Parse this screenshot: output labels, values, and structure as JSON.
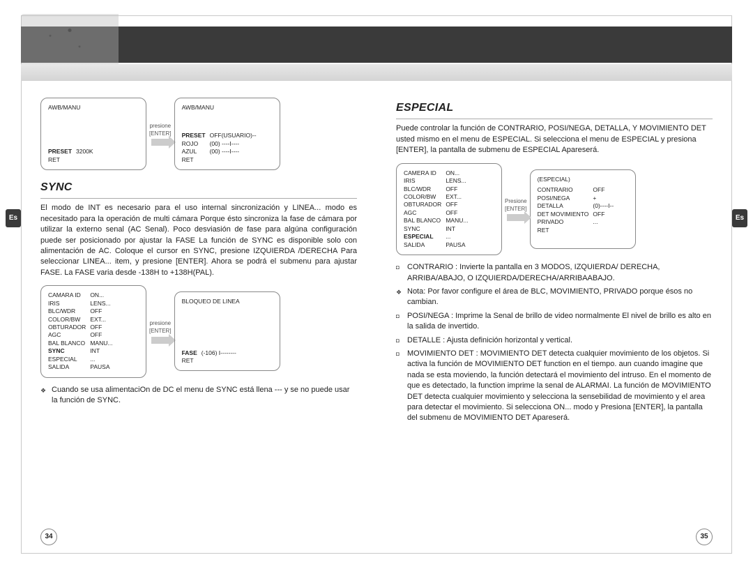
{
  "lang_tab": "Es",
  "left": {
    "awb_title": "AWB/MANU",
    "box1_rows": [
      [
        "PRESET*",
        "3200K"
      ],
      [
        "RET",
        ""
      ]
    ],
    "arrow1_label": [
      "presione",
      "[ENTER]"
    ],
    "box2_rows": [
      [
        "PRESET*",
        "OFF(USUARIO)--"
      ],
      [
        "ROJO",
        "(00) ----I----"
      ],
      [
        "AZUL",
        "(00) ----I----"
      ],
      [
        "RET",
        ""
      ]
    ],
    "sync_heading": "SYNC",
    "sync_body": "El modo de INT es necesario para el uso internal sincronización y LINEA... modo es necesitado para la operación de multi cámara Porque ésto sincroniza la fase de cámara por utilizar la externo senal (AC Senal). Poco desviasión de fase para algúna configuración puede ser posicionado por ajustar la FASE La función de SYNC es disponible solo con alimentación de AC. Coloque el cursor en SYNC, presione IZQUIERDA /DERECHA Para seleccionar LINEA... item, y presione [ENTER]. Ahora se podrá el submenu para ajustar FASE. La FASE varia desde -138H to +138H(PAL).",
    "settings_box_rows": [
      [
        "CAMARA ID",
        "ON..."
      ],
      [
        "IRIS",
        "LENS..."
      ],
      [
        "BLC/WDR",
        "OFF"
      ],
      [
        "COLOR/BW",
        "EXT..."
      ],
      [
        "OBTURADOR",
        "OFF"
      ],
      [
        "AGC",
        "OFF"
      ],
      [
        "BAL BLANCO",
        "MANU..."
      ],
      [
        "SYNC*",
        "INT"
      ],
      [
        "ESPECIAL",
        "..."
      ],
      [
        "SALIDA",
        "PAUSA"
      ]
    ],
    "arrow2_label": [
      "presione",
      "[ENTER]"
    ],
    "linelock_title": "BLOQUEO DE LINEA",
    "linelock_rows": [
      [
        "FASE*",
        "(-106) I--------"
      ],
      [
        "RET",
        ""
      ]
    ],
    "note": "Cuando se usa alimentaciOn de DC el menu de SYNC está llena --- y se no puede usar la función de SYNC.",
    "page_num": "34"
  },
  "right": {
    "especial_heading": "ESPECIAL",
    "especial_body": "Puede controlar la función de CONTRARIO, POSI/NEGA, DETALLA, Y MOVIMIENTO DET usted mismo en el menu de ESPECIAL. Si selecciona el menu de ESPECIAL y presiona [ENTER], la pantalla de submenu de ESPECIAL Apareserá.",
    "settings_box_rows": [
      [
        "CAMERA ID",
        "ON..."
      ],
      [
        "IRIS",
        "LENS..."
      ],
      [
        "BLC/WDR",
        "OFF"
      ],
      [
        "COLOR/BW",
        "EXT..."
      ],
      [
        "OBTURADOR",
        "OFF"
      ],
      [
        "AGC",
        "OFF"
      ],
      [
        "BAL BLANCO",
        "MANU..."
      ],
      [
        "SYNC",
        "INT"
      ],
      [
        "ESPECIAL*",
        "..."
      ],
      [
        "SALIDA",
        "PAUSA"
      ]
    ],
    "arrow_label": [
      "Presione",
      "[ENTER]"
    ],
    "especial_box_title": "(ESPECIAL)",
    "especial_box_rows": [
      [
        "CONTRARIO",
        "OFF"
      ],
      [
        "POSI/NEGA",
        "+"
      ],
      [
        "DETALLA",
        "(0)----I--"
      ],
      [
        "DET MOVIMIENTO",
        "OFF"
      ],
      [
        "PRIVADO",
        "..."
      ],
      [
        "",
        ""
      ],
      [
        "RET",
        ""
      ]
    ],
    "bullets": [
      {
        "t": "sq",
        "text": "CONTRARIO : Invierte la pantalla en 3 MODOS, IZQUIERDA/ DERECHA, ARRIBA/ABAJO, O IZQUIERDA/DERECHA/ARRIBAABAJO."
      },
      {
        "t": "d",
        "text": "Nota: Por favor configure el área de BLC, MOVIMIENTO, PRIVADO porque ésos no cambian."
      },
      {
        "t": "sq",
        "text": "POSI/NEGA : Imprime la Senal de brillo de video normalmente El nivel de brillo es alto en la salida de invertido."
      },
      {
        "t": "sq",
        "text": "DETALLE : Ajusta definición horizontal y vertical."
      },
      {
        "t": "sq",
        "text": "MOVIMIENTO DET : MOVIMIENTO DET detecta cualquier movimiento de los objetos. Si activa la función de MOVIMIENTO DET function en el tiempo. aun cuando imagine que nada se esta moviendo, la función detectará el movimiento del intruso. En el momento de que es detectado, la function imprime la senal de ALARMAI. La función de MOVIMIENTO DET detecta cualquier movimiento y selecciona la sensebilidad de movimiento y el area para detectar el movimiento. Si selecciona ON... modo y Presiona [ENTER], la pantalla del submenu de MOVIMIENTO DET Apareserá."
      }
    ],
    "page_num": "35"
  }
}
